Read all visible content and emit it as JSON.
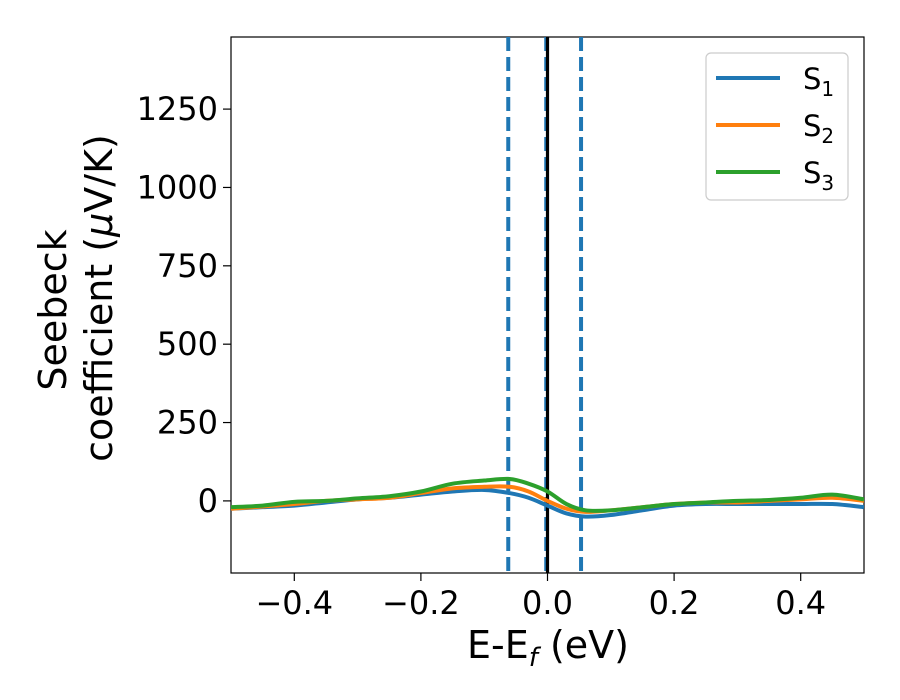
{
  "chart_data": {
    "type": "line",
    "xlabel": {
      "main": "E-E",
      "sub": "f",
      "unit": " (eV)"
    },
    "ylabel": {
      "line1": "Seebeck",
      "line2": "coefficient  (",
      "mu": "μ",
      "line2_end": "V/K)"
    },
    "xlim": [
      -0.5,
      0.5
    ],
    "ylim": [
      -230,
      1480
    ],
    "x_ticks": [
      -0.4,
      -0.2,
      0.0,
      0.2,
      0.4
    ],
    "x_tick_labels": [
      "−0.4",
      "−0.2",
      "0.0",
      "0.2",
      "0.4"
    ],
    "y_ticks": [
      0,
      250,
      500,
      750,
      1000,
      1250
    ],
    "y_tick_labels": [
      "0",
      "250",
      "500",
      "750",
      "1000",
      "1250"
    ],
    "legend_position": "top-right",
    "grid": false,
    "vertical_lines": [
      {
        "x": -0.062,
        "style": "dashed",
        "color": "#1f77b4"
      },
      {
        "x": -0.002,
        "style": "dashed",
        "color": "#1f77b4"
      },
      {
        "x": 0.053,
        "style": "dashed",
        "color": "#1f77b4"
      },
      {
        "x": 0.0,
        "style": "solid",
        "color": "#000000"
      }
    ],
    "x": [
      -0.5,
      -0.45,
      -0.4,
      -0.35,
      -0.3,
      -0.25,
      -0.2,
      -0.15,
      -0.1,
      -0.06,
      -0.03,
      0.0,
      0.03,
      0.06,
      0.1,
      0.15,
      0.2,
      0.25,
      0.3,
      0.35,
      0.4,
      0.45,
      0.5
    ],
    "series": [
      {
        "name": "S",
        "sub": "1",
        "color": "#1f77b4",
        "values": [
          -25,
          -20,
          -15,
          -5,
          5,
          10,
          20,
          30,
          35,
          25,
          10,
          -15,
          -40,
          -50,
          -45,
          -30,
          -15,
          -10,
          -10,
          -10,
          -10,
          -10,
          -20
        ]
      },
      {
        "name": "S",
        "sub": "2",
        "color": "#ff7f0e",
        "values": [
          -25,
          -18,
          -10,
          0,
          5,
          10,
          25,
          40,
          45,
          45,
          30,
          0,
          -25,
          -35,
          -30,
          -20,
          -10,
          -5,
          -5,
          0,
          5,
          10,
          0
        ]
      },
      {
        "name": "S",
        "sub": "3",
        "color": "#2ca02c",
        "values": [
          -20,
          -15,
          -3,
          0,
          8,
          15,
          30,
          55,
          65,
          70,
          55,
          30,
          -10,
          -30,
          -30,
          -20,
          -10,
          -5,
          0,
          3,
          10,
          20,
          5
        ]
      }
    ]
  }
}
